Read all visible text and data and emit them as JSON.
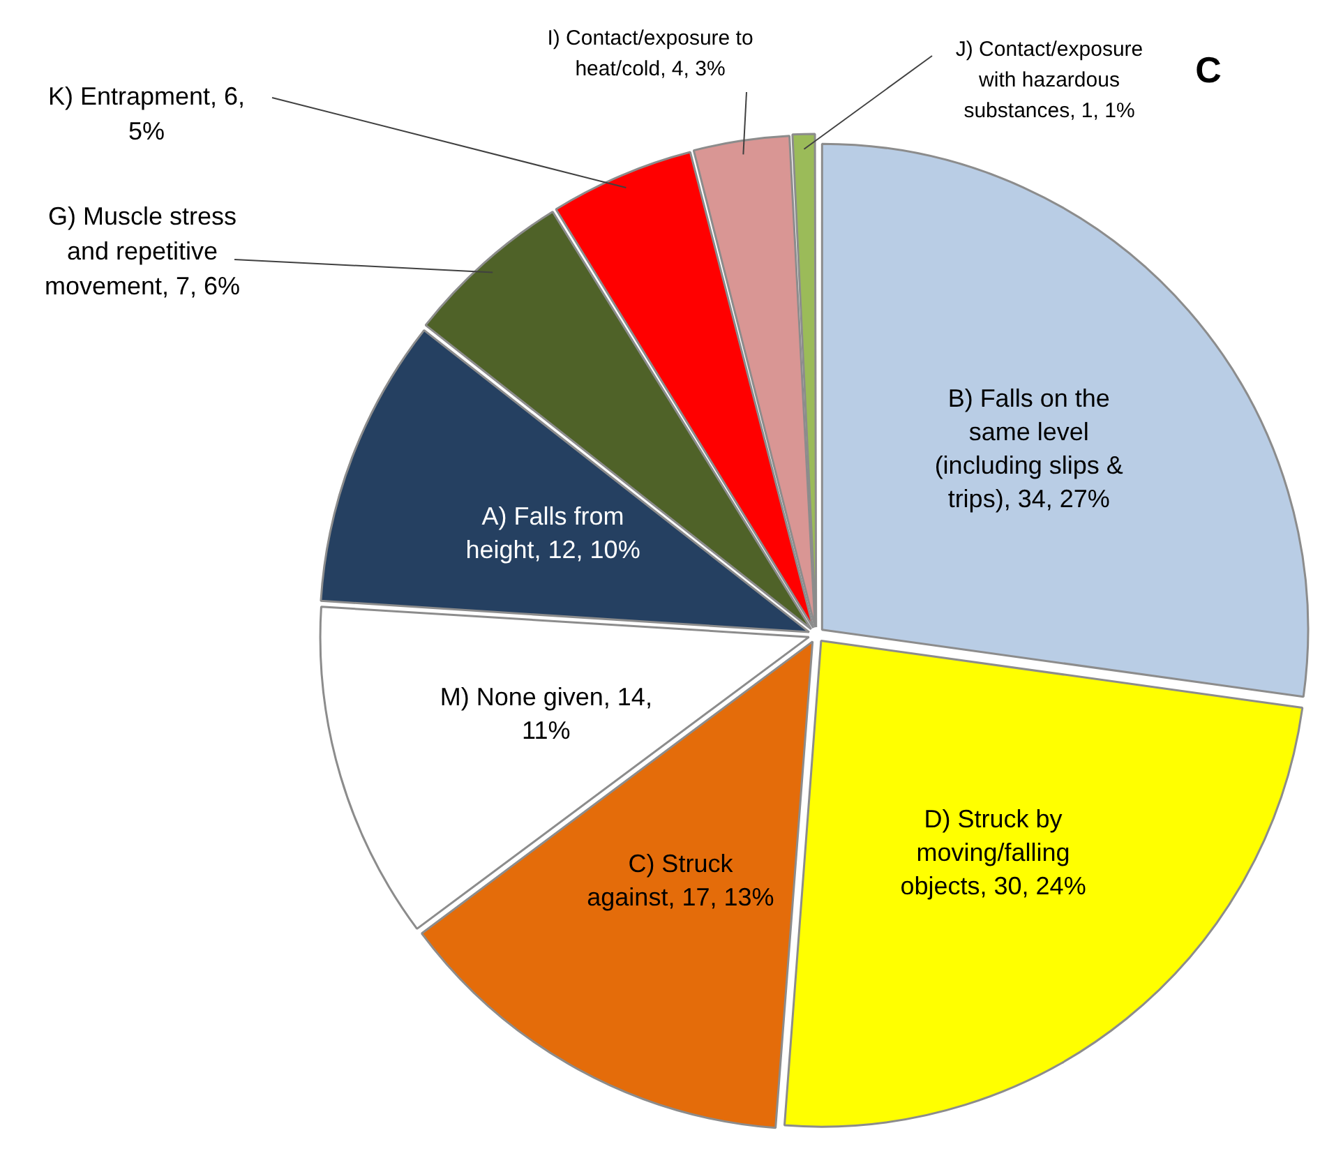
{
  "chart_data": {
    "type": "pie",
    "categories": [
      "B) Falls on the same level (including slips & trips)",
      "D) Struck by moving/falling objects",
      "C) Struck against",
      "M) None given",
      "A) Falls from height",
      "G) Muscle stress and repetitive movement",
      "K) Entrapment",
      "I) Contact/exposure to heat/cold",
      "J) Contact/exposure with hazardous substances"
    ],
    "values": [
      34,
      30,
      17,
      14,
      12,
      7,
      6,
      4,
      1
    ],
    "value_labels": [
      "34, 27%",
      "30, 24%",
      "17, 13%",
      "14, 11%",
      "12, 10%",
      "7, 6%",
      "6, 5%",
      "4, 3%",
      "1, 1%"
    ],
    "colors": [
      "#b9cde5",
      "#ffff00",
      "#e46c0a",
      "#ffffff",
      "#254061",
      "#4f6228",
      "#ff0000",
      "#d99694",
      "#9bbb59"
    ],
    "legend": false,
    "annotations": [
      "C"
    ]
  }
}
